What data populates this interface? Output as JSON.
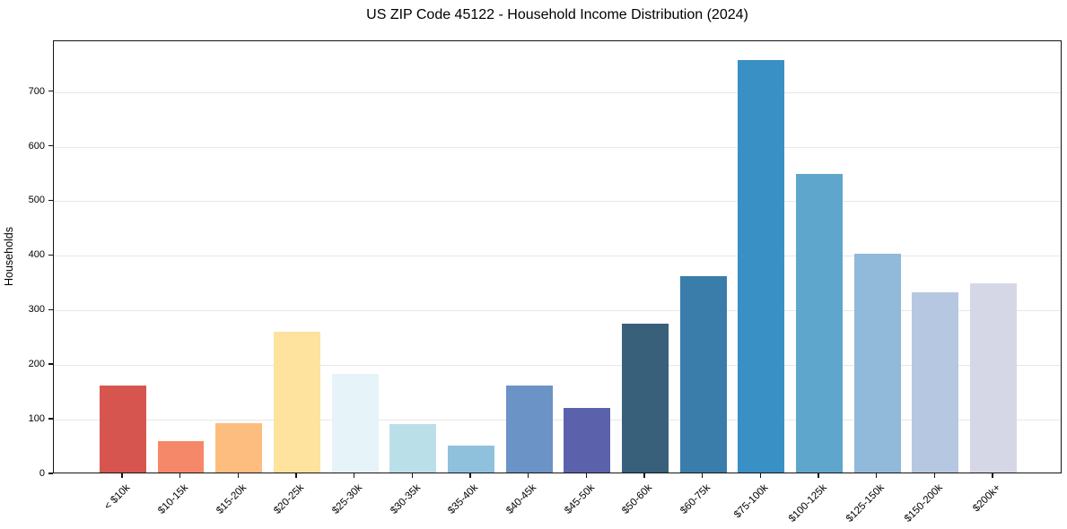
{
  "chart_data": {
    "type": "bar",
    "title": "US ZIP Code 45122 - Household Income Distribution (2024)",
    "xlabel": "",
    "ylabel": "Households",
    "categories": [
      "< $10k",
      "$10-15k",
      "$15-20k",
      "$20-25k",
      "$25-30k",
      "$30-35k",
      "$35-40k",
      "$40-45k",
      "$45-50k",
      "$50-60k",
      "$60-75k",
      "$75-100k",
      "$100-125k",
      "$125-150k",
      "$150-200k",
      "$200k+"
    ],
    "values": [
      160,
      58,
      90,
      258,
      181,
      88,
      50,
      160,
      118,
      272,
      360,
      755,
      546,
      400,
      330,
      346
    ],
    "bar_colors": [
      "#d6564f",
      "#f58868",
      "#fcbd7e",
      "#fde39e",
      "#e6f3f8",
      "#bbdfe9",
      "#8fc0dc",
      "#6b93c6",
      "#5c61ab",
      "#38607a",
      "#3a7dab",
      "#3990c4",
      "#5fa6cd",
      "#90b9da",
      "#b6c8e1",
      "#d5d7e6"
    ],
    "yticks": [
      0,
      100,
      200,
      300,
      400,
      500,
      600,
      700
    ],
    "ylim": [
      0,
      793
    ],
    "xlim_units": [
      -1.19,
      16.19
    ],
    "bar_width_units": 0.8,
    "grid": "horizontal",
    "grid_color": "#e7e7e7",
    "axis_color": "#141414",
    "text_color": "#000000",
    "background_color": "#ffffff",
    "legend": "none"
  }
}
